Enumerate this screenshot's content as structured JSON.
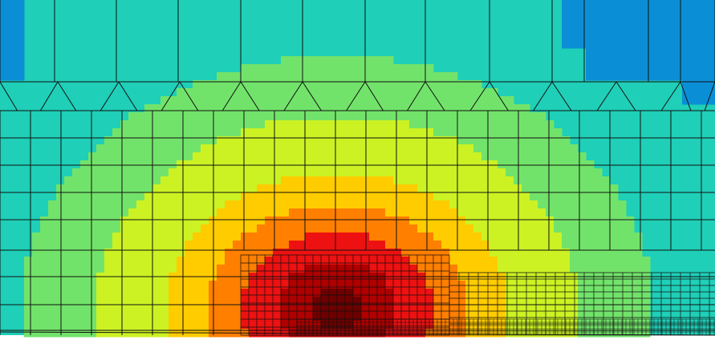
{
  "figure": {
    "kind": "contour-on-mesh",
    "colormap": [
      "#0a8fd6",
      "#1fcfb8",
      "#72e36a",
      "#ccf223",
      "#ffcc00",
      "#ff7f00",
      "#ee1111",
      "#b00000",
      "#6e0000"
    ],
    "mesh_line_color": "#111111",
    "background": "#ffffff"
  }
}
